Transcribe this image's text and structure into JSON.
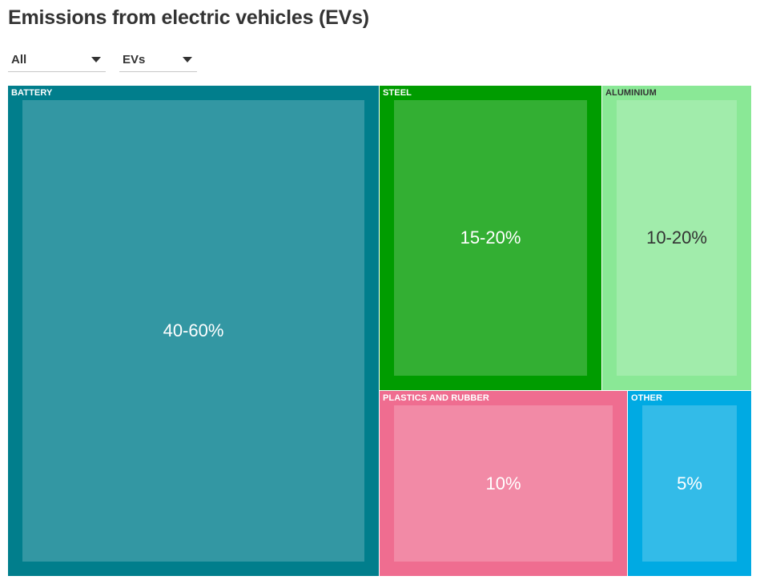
{
  "header": {
    "title": "Emissions from electric vehicles (EVs)"
  },
  "filters": [
    {
      "selected": "All"
    },
    {
      "selected": "EVs"
    }
  ],
  "chart_data": {
    "type": "treemap",
    "title": "Emissions from electric vehicles (EVs)",
    "items": [
      {
        "label": "BATTERY",
        "value_text": "40-60%",
        "value": 50,
        "color": "#017e8c",
        "text_color": "#ffffff"
      },
      {
        "label": "STEEL",
        "value_text": "15-20%",
        "value": 17.5,
        "color": "#009c00",
        "text_color": "#ffffff"
      },
      {
        "label": "ALUMINIUM",
        "value_text": "10-20%",
        "value": 15,
        "color": "#8ae896",
        "text_color": "#333333"
      },
      {
        "label": "PLASTICS AND RUBBER",
        "value_text": "10%",
        "value": 10,
        "color": "#ef6d90",
        "text_color": "#ffffff"
      },
      {
        "label": "OTHER",
        "value_text": "5%",
        "value": 5,
        "color": "#00aae3",
        "text_color": "#ffffff"
      }
    ]
  }
}
